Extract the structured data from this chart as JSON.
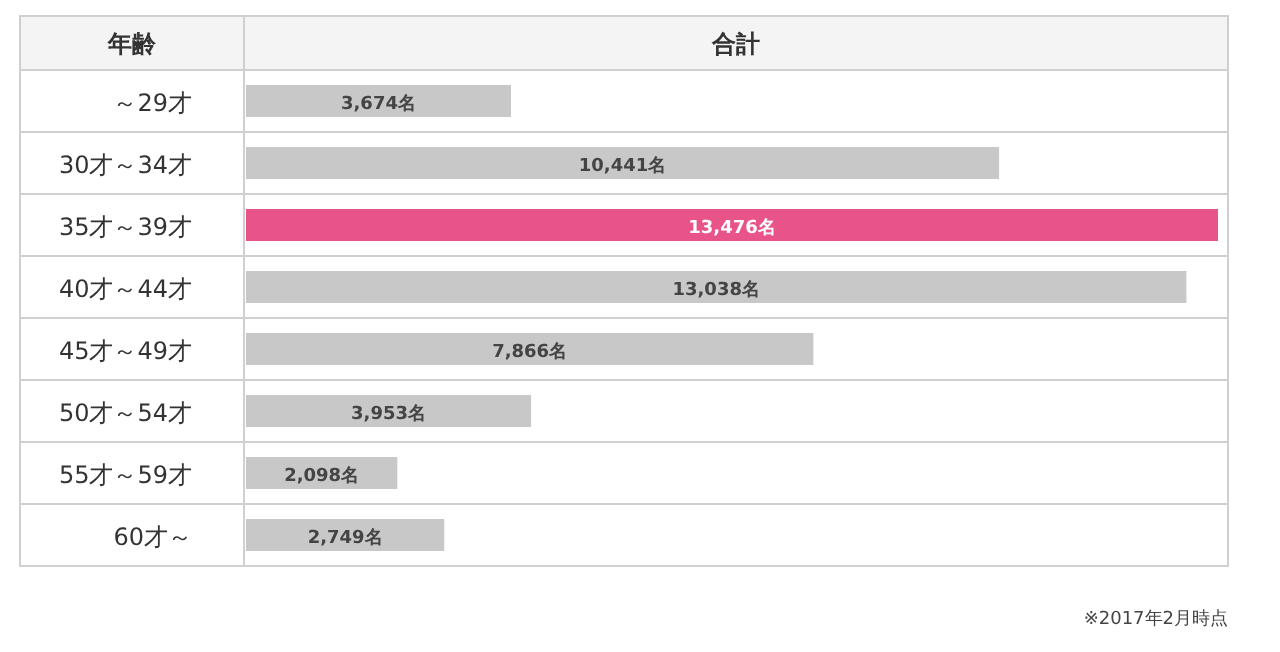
{
  "chart_data": {
    "type": "bar",
    "orientation": "horizontal",
    "ylabel": "年齢",
    "xlabel": "合計",
    "categories": [
      "～29才",
      "30才～34才",
      "35才～39才",
      "40才～44才",
      "45才～49才",
      "50才～54才",
      "55才～59才",
      "60才～"
    ],
    "values": [
      3674,
      10441,
      13476,
      13038,
      7866,
      3953,
      2098,
      2749
    ],
    "colors": [
      "#c8c8c8",
      "#c8c8c8",
      "#e8538a",
      "#c8c8c8",
      "#c8c8c8",
      "#c8c8c8",
      "#c8c8c8",
      "#c8c8c8"
    ],
    "value_labels": [
      "3,674名",
      "10,441名",
      "13,476名",
      "13,038名",
      "7,866名",
      "3,953名",
      "2,098名",
      "2,749名"
    ],
    "annotations": [
      "※2017年2月時点"
    ]
  }
}
